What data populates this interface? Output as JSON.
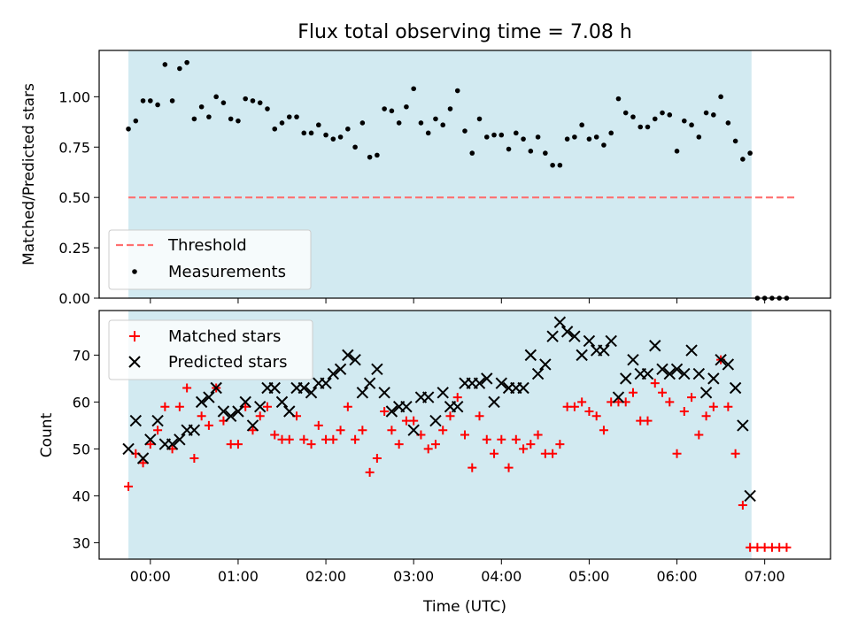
{
  "title": "Flux total observing time = 7.08 h",
  "colors": {
    "shade": "#add8e6",
    "threshold": "#ff6f6f",
    "measurement": "#000000",
    "matched": "#ff0000",
    "predicted": "#000000"
  },
  "chart_data": [
    {
      "type": "scatter",
      "ylabel": "Matched/Predicted stars",
      "xlabel": "",
      "ylim": [
        0.0,
        1.23
      ],
      "y_ticks": [
        "0.00",
        "0.25",
        "0.50",
        "0.75",
        "1.00"
      ],
      "x_unit": "minutes after 00:00 UTC",
      "xlim": [
        -35,
        465
      ],
      "x_ticks": [
        0,
        60,
        120,
        180,
        240,
        300,
        360,
        420
      ],
      "shaded_interval": [
        -15,
        411
      ],
      "legend_position": "lower-left",
      "series": [
        {
          "name": "Threshold",
          "style": "dashed-line",
          "x": [
            -15,
            441
          ],
          "y": [
            0.5,
            0.5
          ]
        },
        {
          "name": "Measurements",
          "style": "dot",
          "x": [
            -15,
            -10,
            -5,
            0,
            5,
            10,
            15,
            20,
            25,
            30,
            35,
            40,
            45,
            50,
            55,
            60,
            65,
            70,
            75,
            80,
            85,
            90,
            95,
            100,
            105,
            110,
            115,
            120,
            125,
            130,
            135,
            140,
            145,
            150,
            155,
            160,
            165,
            170,
            175,
            180,
            185,
            190,
            195,
            200,
            205,
            210,
            215,
            220,
            225,
            230,
            235,
            240,
            245,
            250,
            255,
            260,
            265,
            270,
            275,
            280,
            285,
            290,
            295,
            300,
            305,
            310,
            315,
            320,
            325,
            330,
            335,
            340,
            345,
            350,
            355,
            360,
            365,
            370,
            375,
            380,
            385,
            390,
            395,
            400,
            405,
            410,
            415,
            420,
            425,
            430,
            435
          ],
          "y": [
            0.84,
            0.88,
            0.98,
            0.98,
            0.96,
            1.16,
            0.98,
            1.14,
            1.17,
            0.89,
            0.95,
            0.9,
            1.0,
            0.97,
            0.89,
            0.88,
            0.99,
            0.98,
            0.97,
            0.94,
            0.84,
            0.87,
            0.9,
            0.9,
            0.82,
            0.82,
            0.86,
            0.81,
            0.79,
            0.8,
            0.84,
            0.75,
            0.87,
            0.7,
            0.71,
            0.94,
            0.93,
            0.87,
            0.95,
            1.04,
            0.87,
            0.82,
            0.89,
            0.86,
            0.94,
            1.03,
            0.83,
            0.72,
            0.89,
            0.8,
            0.81,
            0.81,
            0.74,
            0.82,
            0.79,
            0.73,
            0.8,
            0.72,
            0.66,
            0.66,
            0.79,
            0.8,
            0.86,
            0.79,
            0.8,
            0.76,
            0.82,
            0.99,
            0.92,
            0.9,
            0.85,
            0.85,
            0.89,
            0.92,
            0.91,
            0.73,
            0.88,
            0.86,
            0.8,
            0.92,
            0.91,
            1.0,
            0.87,
            0.78,
            0.69,
            0.72,
            0.0,
            0.0,
            0.0,
            0.0,
            0.0
          ]
        }
      ]
    },
    {
      "type": "scatter",
      "xlabel": "Time (UTC)",
      "ylabel": "Count",
      "x_unit": "minutes after 00:00 UTC",
      "xlim": [
        -35,
        465
      ],
      "ylim": [
        26.5,
        79.5
      ],
      "y_ticks": [
        30,
        40,
        50,
        60,
        70
      ],
      "x_ticks": [
        0,
        60,
        120,
        180,
        240,
        300,
        360,
        420
      ],
      "x_tick_labels": [
        "00:00",
        "01:00",
        "02:00",
        "03:00",
        "04:00",
        "05:00",
        "06:00",
        "07:00"
      ],
      "shaded_interval": [
        -15,
        411
      ],
      "legend_position": "upper-left",
      "series": [
        {
          "name": "Matched stars",
          "marker": "plus",
          "x": [
            -15,
            -10,
            -5,
            0,
            5,
            10,
            15,
            20,
            25,
            30,
            35,
            40,
            45,
            50,
            55,
            60,
            65,
            70,
            75,
            80,
            85,
            90,
            95,
            100,
            105,
            110,
            115,
            120,
            125,
            130,
            135,
            140,
            145,
            150,
            155,
            160,
            165,
            170,
            175,
            180,
            185,
            190,
            195,
            200,
            205,
            210,
            215,
            220,
            225,
            230,
            235,
            240,
            245,
            250,
            255,
            260,
            265,
            270,
            275,
            280,
            285,
            290,
            295,
            300,
            305,
            310,
            315,
            320,
            325,
            330,
            335,
            340,
            345,
            350,
            355,
            360,
            365,
            370,
            375,
            380,
            385,
            390,
            395,
            400,
            405,
            410,
            415,
            420,
            425,
            430,
            435
          ],
          "y": [
            42,
            49,
            47,
            51,
            54,
            59,
            50,
            59,
            63,
            48,
            57,
            55,
            63,
            56,
            51,
            51,
            59,
            54,
            57,
            59,
            53,
            52,
            52,
            57,
            52,
            51,
            55,
            52,
            52,
            54,
            59,
            52,
            54,
            45,
            48,
            58,
            54,
            51,
            56,
            56,
            53,
            50,
            51,
            54,
            57,
            61,
            53,
            46,
            57,
            52,
            49,
            52,
            46,
            52,
            50,
            51,
            53,
            49,
            49,
            51,
            59,
            59,
            60,
            58,
            57,
            54,
            60,
            60,
            60,
            62,
            56,
            56,
            64,
            62,
            60,
            49,
            58,
            61,
            53,
            57,
            59,
            69,
            59,
            49,
            38,
            29,
            29,
            29,
            29,
            29,
            29
          ]
        },
        {
          "name": "Predicted stars",
          "marker": "x",
          "x": [
            -15,
            -10,
            -5,
            0,
            5,
            10,
            15,
            20,
            25,
            30,
            35,
            40,
            45,
            50,
            55,
            60,
            65,
            70,
            75,
            80,
            85,
            90,
            95,
            100,
            105,
            110,
            115,
            120,
            125,
            130,
            135,
            140,
            145,
            150,
            155,
            160,
            165,
            170,
            175,
            180,
            185,
            190,
            195,
            200,
            205,
            210,
            215,
            220,
            225,
            230,
            235,
            240,
            245,
            250,
            255,
            260,
            265,
            270,
            275,
            280,
            285,
            290,
            295,
            300,
            305,
            310,
            315,
            320,
            325,
            330,
            335,
            340,
            345,
            350,
            355,
            360,
            365,
            370,
            375,
            380,
            385,
            390,
            395,
            400,
            405,
            410
          ],
          "y": [
            50,
            56,
            48,
            52,
            56,
            51,
            51,
            52,
            54,
            54,
            60,
            61,
            63,
            58,
            57,
            58,
            60,
            55,
            59,
            63,
            63,
            60,
            58,
            63,
            63,
            62,
            64,
            64,
            66,
            67,
            70,
            69,
            62,
            64,
            67,
            62,
            58,
            59,
            59,
            54,
            61,
            61,
            56,
            62,
            59,
            59,
            64,
            64,
            64,
            65,
            60,
            64,
            63,
            63,
            63,
            70,
            66,
            68,
            74,
            77,
            75,
            74,
            70,
            73,
            71,
            71,
            73,
            61,
            65,
            69,
            66,
            66,
            72,
            67,
            66,
            67,
            66,
            71,
            66,
            62,
            65,
            69,
            68,
            63,
            55,
            40
          ]
        }
      ]
    }
  ]
}
